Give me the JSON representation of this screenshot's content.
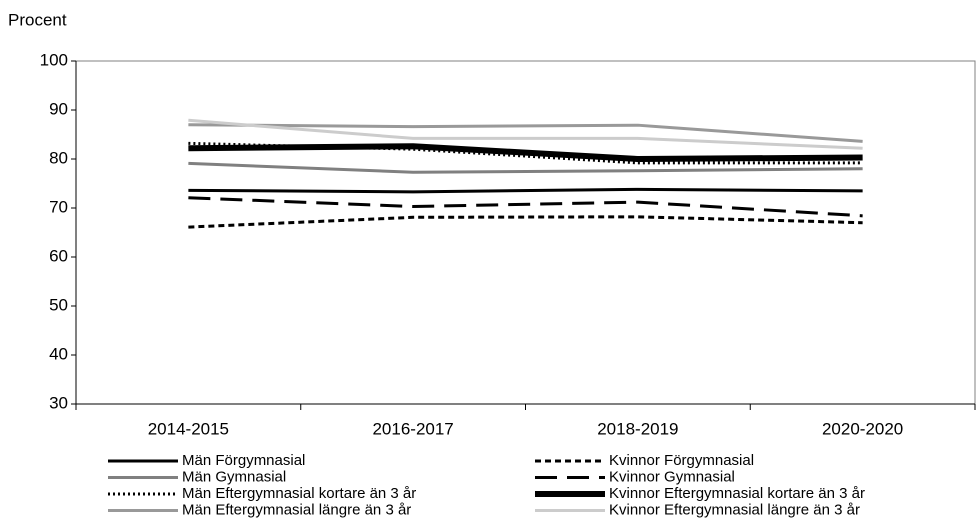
{
  "chart_data": {
    "type": "line",
    "y_label": "Procent",
    "categories": [
      "2014-2015",
      "2016-2017",
      "2018-2019",
      "2020-2020"
    ],
    "ylim": [
      30,
      100
    ],
    "yticks": [
      30,
      40,
      50,
      60,
      70,
      80,
      90,
      100
    ],
    "series": [
      {
        "name": "Män Förgymnasial",
        "color": "#000000",
        "style": "solid",
        "values": [
          73.6,
          73.3,
          73.8,
          73.5
        ]
      },
      {
        "name": "Kvinnor Förgymnasial",
        "color": "#000000",
        "style": "dashed",
        "values": [
          66.1,
          68.1,
          68.2,
          67.0
        ]
      },
      {
        "name": "Män Gymnasial",
        "color": "#808080",
        "style": "solid",
        "values": [
          79.1,
          77.3,
          77.6,
          78.0
        ]
      },
      {
        "name": "Kvinnor Gymnasial",
        "color": "#000000",
        "style": "longdash",
        "values": [
          72.1,
          70.3,
          71.2,
          68.4
        ]
      },
      {
        "name": "Män Eftergymnasial kortare än 3 år",
        "color": "#000000",
        "style": "dotted",
        "values": [
          83.2,
          82.0,
          79.2,
          79.2
        ]
      },
      {
        "name": "Kvinnor Eftergymnasial kortare än 3 år",
        "color": "#000000",
        "style": "thick",
        "values": [
          82.2,
          82.6,
          80.0,
          80.3
        ]
      },
      {
        "name": "Män Eftergymnasial längre än 3 år",
        "color": "#999999",
        "style": "solid",
        "values": [
          87.0,
          86.6,
          86.9,
          83.6
        ]
      },
      {
        "name": "Kvinnor Eftergymnasial längre än 3 år",
        "color": "#cccccc",
        "style": "solid",
        "values": [
          87.9,
          84.2,
          84.2,
          82.2
        ]
      }
    ]
  }
}
